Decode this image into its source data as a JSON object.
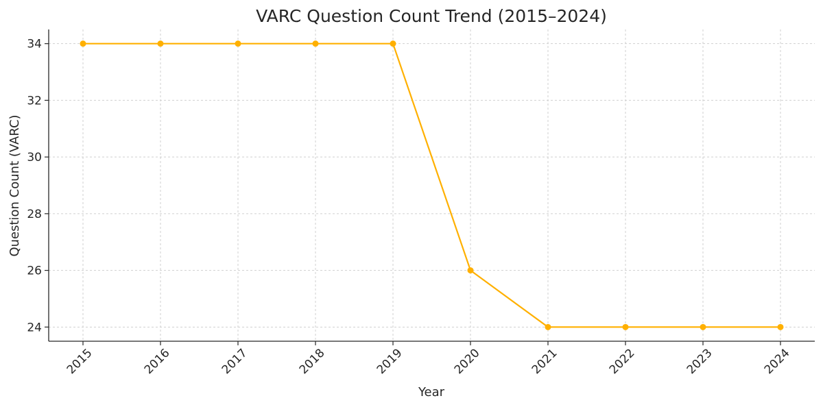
{
  "chart_data": {
    "type": "line",
    "title": "VARC Question Count Trend (2015–2024)",
    "xlabel": "Year",
    "ylabel": "Question Count (VARC)",
    "x": [
      "2015",
      "2016",
      "2017",
      "2018",
      "2019",
      "2020",
      "2021",
      "2022",
      "2023",
      "2024"
    ],
    "series": [
      {
        "values": [
          34,
          34,
          34,
          34,
          34,
          26,
          24,
          24,
          24,
          24
        ]
      }
    ],
    "y_ticks": [
      "24",
      "26",
      "28",
      "30",
      "32",
      "34"
    ],
    "ylim": [
      23.5,
      34.5
    ],
    "grid": true,
    "line_color": "#ffb000",
    "marker": "circle"
  }
}
